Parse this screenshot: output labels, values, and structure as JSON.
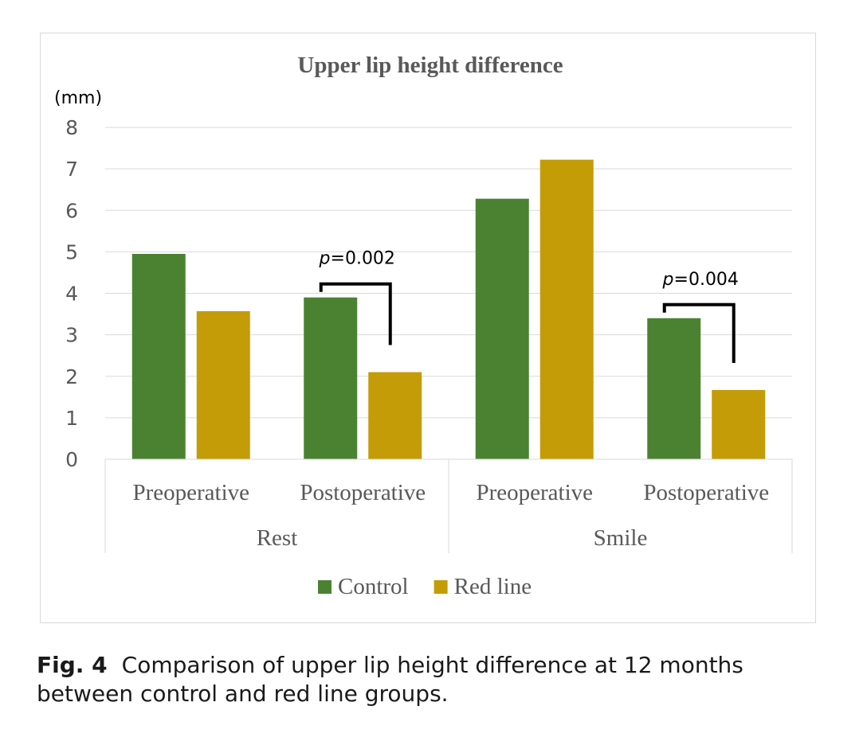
{
  "figure": {
    "label": "Fig. 4",
    "caption": "Comparison of upper lip height difference at 12 months between control and red line groups."
  },
  "chart_data": {
    "type": "bar",
    "title": "Upper lip height difference",
    "unit_label": "(mm)",
    "ylim": [
      0,
      8
    ],
    "yticks": [
      "0",
      "1",
      "2",
      "3",
      "4",
      "5",
      "6",
      "7",
      "8"
    ],
    "grid": true,
    "groups": [
      {
        "name": "Rest",
        "categories": [
          "Preoperative",
          "Postoperative"
        ]
      },
      {
        "name": "Smile",
        "categories": [
          "Preoperative",
          "Postoperative"
        ]
      }
    ],
    "series": [
      {
        "name": "Control",
        "color": "#4b8232",
        "values": [
          4.95,
          3.9,
          6.28,
          3.4
        ]
      },
      {
        "name": "Red line",
        "color": "#c39c07",
        "values": [
          3.57,
          2.1,
          7.22,
          1.67
        ]
      }
    ],
    "annotations": [
      {
        "p_symbol": "p",
        "p_rest": "=0.002",
        "category_index": 1
      },
      {
        "p_symbol": "p",
        "p_rest": "=0.004",
        "category_index": 3
      }
    ],
    "legend_position": "bottom"
  }
}
